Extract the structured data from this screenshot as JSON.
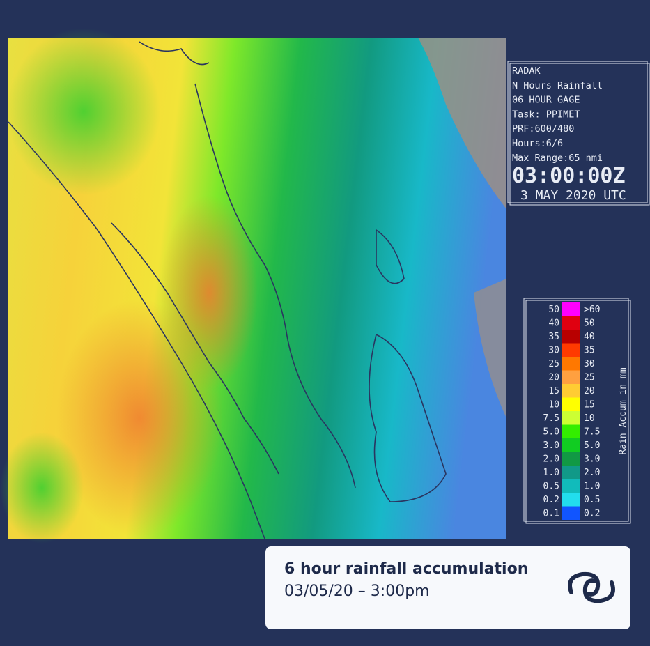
{
  "info_panel": {
    "lines": [
      "RADAK",
      "N Hours Rainfall",
      "06_HOUR_GAGE",
      "Task: PPIMET",
      "PRF:600/480",
      "Hours:6/6",
      "Max Range:65 nmi"
    ],
    "time": "03:00:00Z",
    "date": "3 MAY 2020 UTC"
  },
  "legend": {
    "title": "Rain Accum in mm",
    "rows": [
      {
        "low": "50",
        "high": ">60",
        "color": "#ff00ff"
      },
      {
        "low": "40",
        "high": "50",
        "color": "#e00010"
      },
      {
        "low": "35",
        "high": "40",
        "color": "#b80000"
      },
      {
        "low": "30",
        "high": "35",
        "color": "#ff3a00"
      },
      {
        "low": "25",
        "high": "30",
        "color": "#ff7800"
      },
      {
        "low": "20",
        "high": "25",
        "color": "#ffa040"
      },
      {
        "low": "15",
        "high": "20",
        "color": "#ffcc33"
      },
      {
        "low": "10",
        "high": "15",
        "color": "#ffff00"
      },
      {
        "low": "7.5",
        "high": "10",
        "color": "#ccff33"
      },
      {
        "low": "5.0",
        "high": "7.5",
        "color": "#33ee00"
      },
      {
        "low": "3.0",
        "high": "5.0",
        "color": "#11cc22"
      },
      {
        "low": "2.0",
        "high": "3.0",
        "color": "#119944"
      },
      {
        "low": "1.0",
        "high": "2.0",
        "color": "#119988"
      },
      {
        "low": "0.5",
        "high": "1.0",
        "color": "#11bbbb"
      },
      {
        "low": "0.2",
        "high": "0.5",
        "color": "#22ddee"
      },
      {
        "low": "0.1",
        "high": "0.2",
        "color": "#1155ff"
      }
    ]
  },
  "caption": {
    "title": "6 hour rainfall accumulation",
    "subtitle": "03/05/20 – 3:00pm"
  }
}
